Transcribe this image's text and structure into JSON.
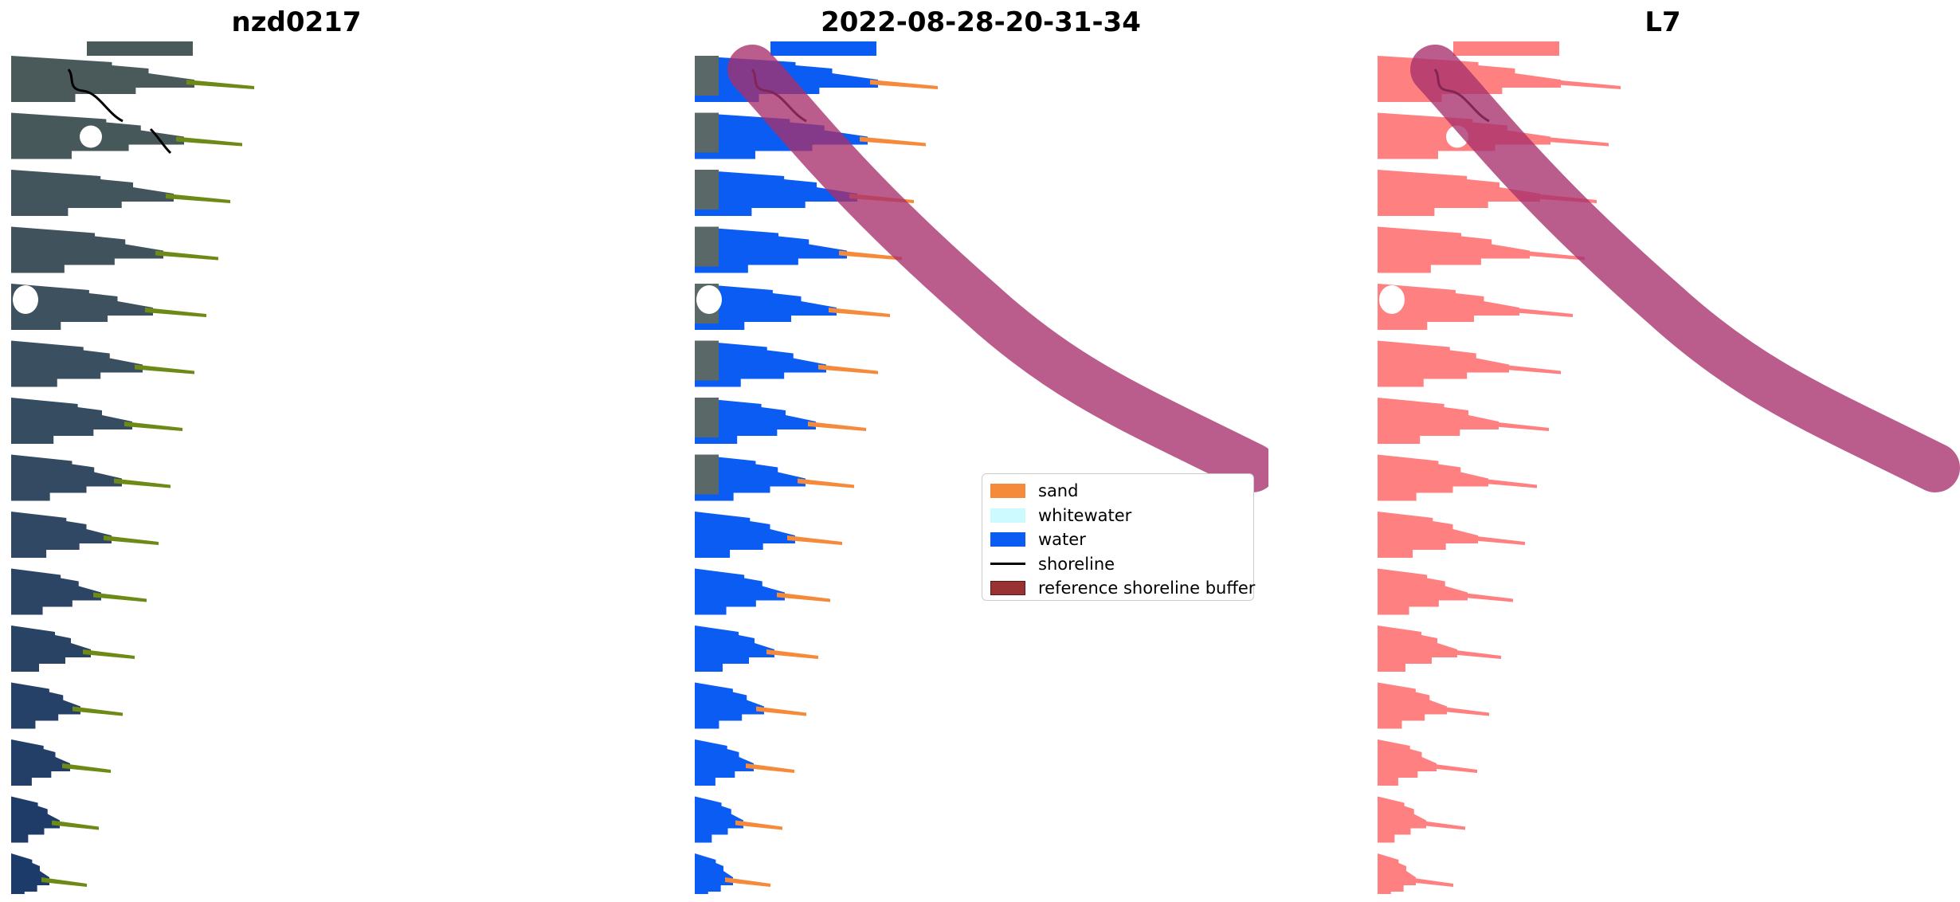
{
  "panels": [
    {
      "title": "nzd0217"
    },
    {
      "title": "2022-08-28-20-31-34"
    },
    {
      "title": "L7"
    }
  ],
  "legend": {
    "items": [
      {
        "label": "sand",
        "color": "#f58a3a",
        "kind": "patch"
      },
      {
        "label": "whitewater",
        "color": "#ccfaff",
        "kind": "patch"
      },
      {
        "label": "water",
        "color": "#0b5cf2",
        "kind": "patch"
      },
      {
        "label": "shoreline",
        "color": "#000000",
        "kind": "line"
      },
      {
        "label": "reference shoreline buffer",
        "color": "#993333",
        "kind": "patch"
      }
    ]
  },
  "colors": {
    "buffer_overlay": "#a8306c",
    "mask_pink": "#ff8080",
    "land_image": "#4a5a5a",
    "sea_image": "#1c3a6a",
    "transect_green": "#6d8a16",
    "shoreline": "#000000"
  }
}
